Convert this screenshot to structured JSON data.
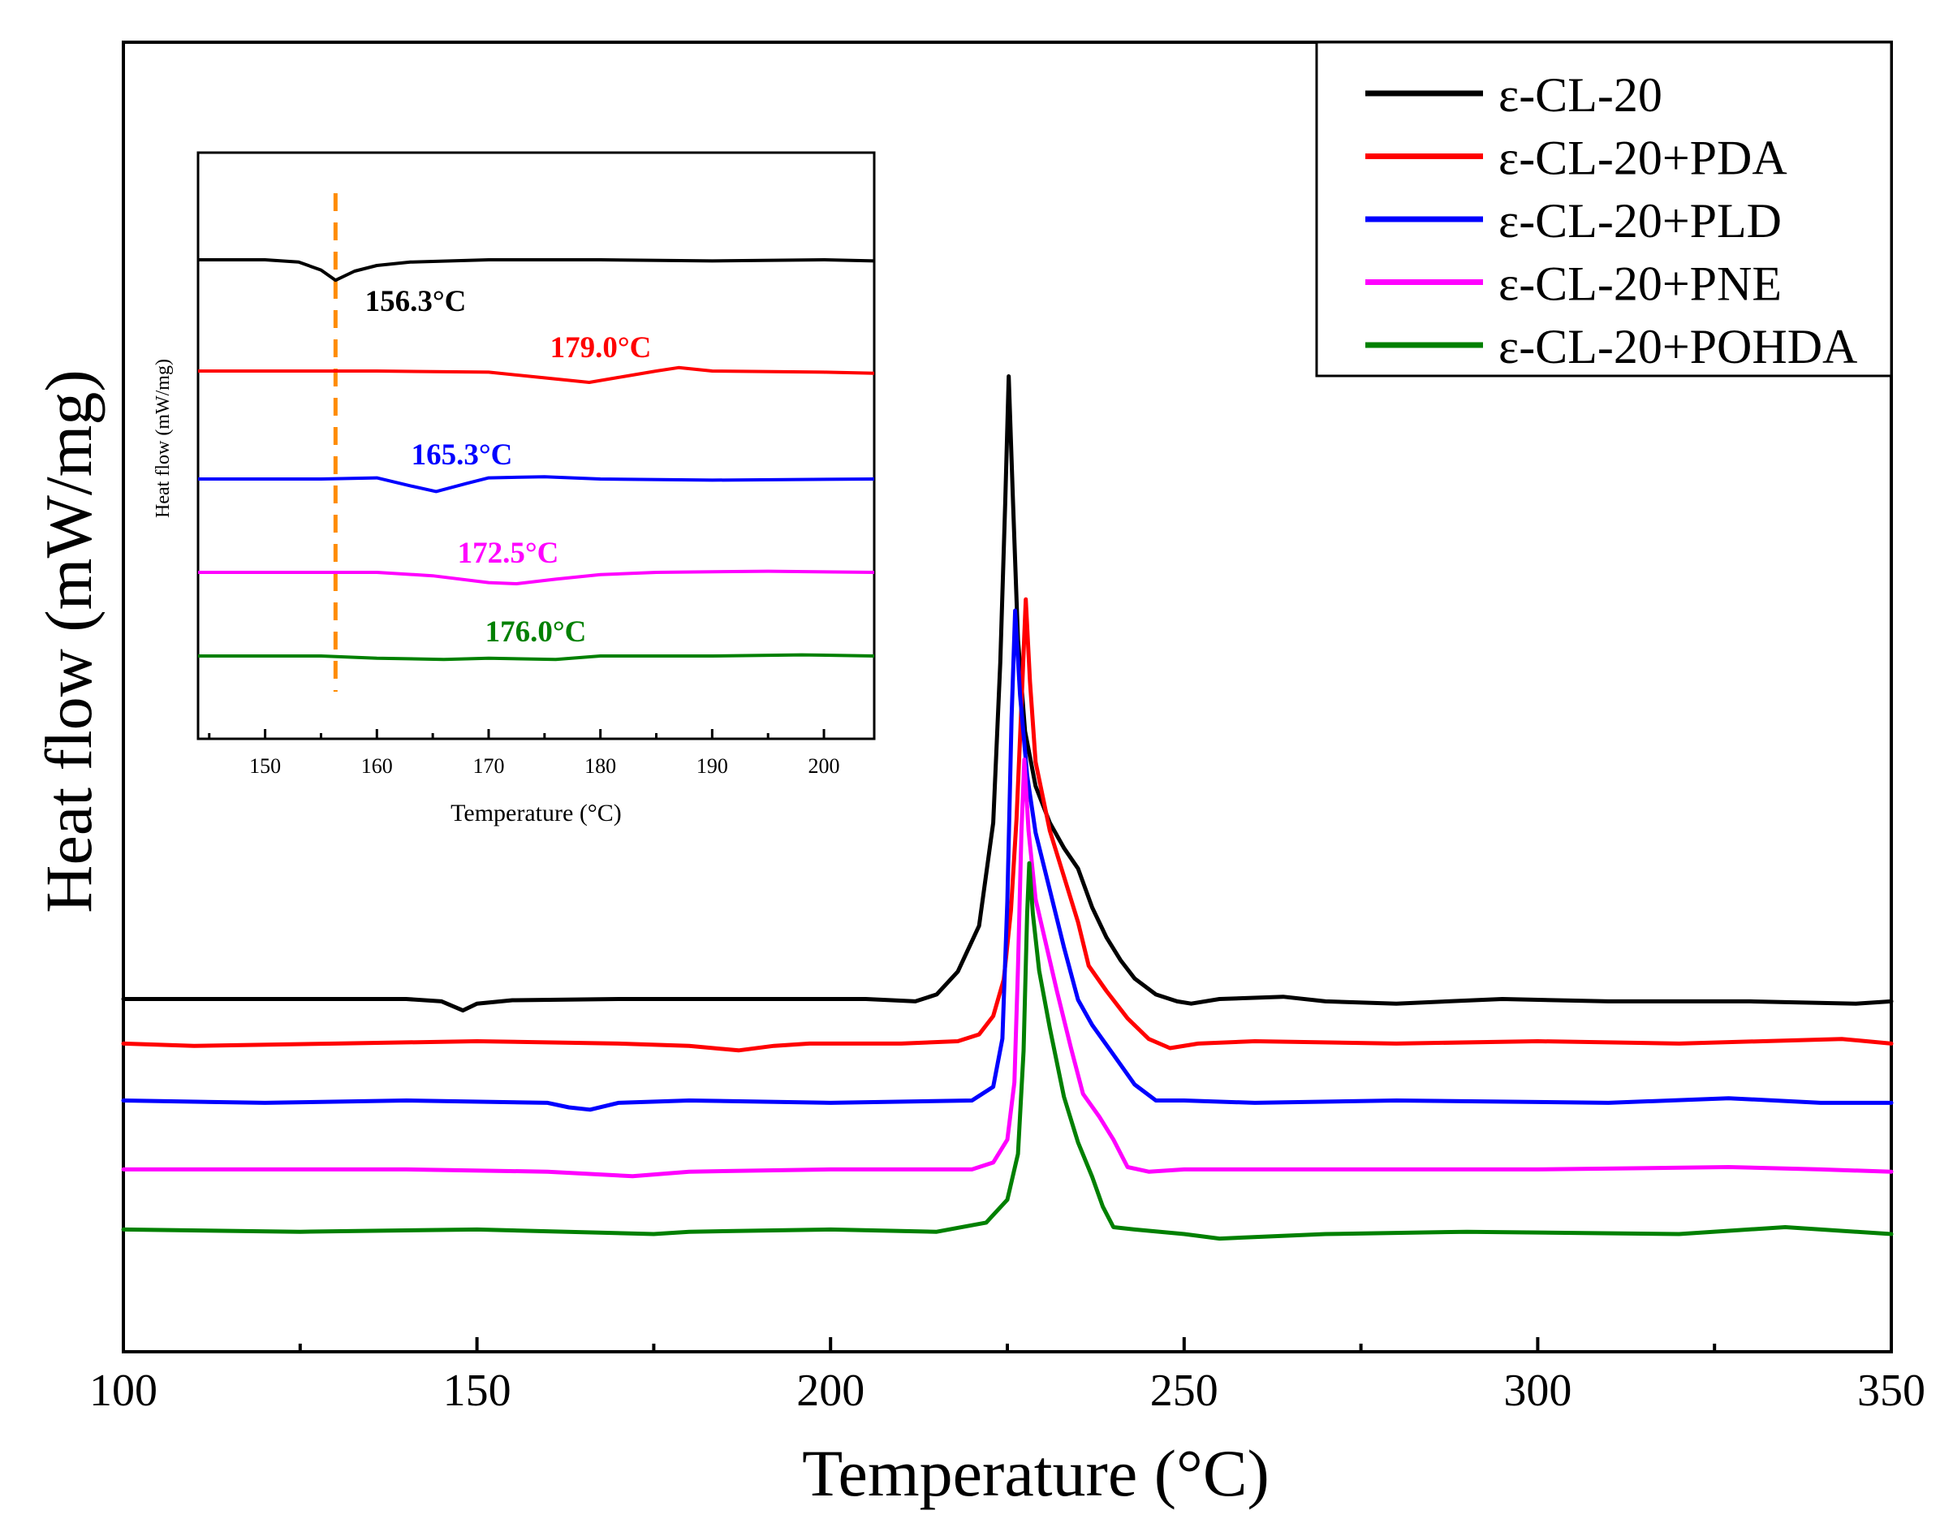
{
  "chart_data": [
    {
      "type": "line",
      "title": "",
      "xlabel": "Temperature (°C)",
      "ylabel": "Heat flow (mW/mg)",
      "xlim": [
        100,
        350
      ],
      "x_ticks": [
        100,
        150,
        200,
        250,
        300,
        350
      ],
      "y_ticks_shown": false,
      "grid": false,
      "legend": "top-right",
      "series": [
        {
          "name": "ε-CL-20",
          "color": "#000000",
          "points": [
            [
              100,
              0.3
            ],
            [
              110,
              0.3
            ],
            [
              130,
              0.3
            ],
            [
              140,
              0.3
            ],
            [
              145,
              0.2
            ],
            [
              148,
              -0.2
            ],
            [
              150,
              0.1
            ],
            [
              155,
              0.25
            ],
            [
              170,
              0.3
            ],
            [
              190,
              0.3
            ],
            [
              205,
              0.3
            ],
            [
              212,
              0.2
            ],
            [
              215,
              0.5
            ],
            [
              218,
              1.5
            ],
            [
              221,
              3.5
            ],
            [
              223,
              8
            ],
            [
              224,
              15
            ],
            [
              224.7,
              22
            ],
            [
              225.2,
              27.5
            ],
            [
              225.8,
              22
            ],
            [
              226.5,
              16
            ],
            [
              227.5,
              12
            ],
            [
              229,
              9.6
            ],
            [
              231,
              8
            ],
            [
              233,
              6.9
            ],
            [
              235,
              6
            ],
            [
              237,
              4.3
            ],
            [
              239,
              3
            ],
            [
              241,
              2
            ],
            [
              243,
              1.2
            ],
            [
              246,
              0.5
            ],
            [
              249,
              0.2
            ],
            [
              251,
              0.1
            ],
            [
              255,
              0.3
            ],
            [
              264,
              0.4
            ],
            [
              270,
              0.2
            ],
            [
              280,
              0.1
            ],
            [
              295,
              0.3
            ],
            [
              310,
              0.2
            ],
            [
              330,
              0.2
            ],
            [
              345,
              0.1
            ],
            [
              350,
              0.2
            ]
          ]
        },
        {
          "name": "ε-CL-20+PDA",
          "color": "#ff0000",
          "points": [
            [
              100,
              0.2
            ],
            [
              110,
              0.1
            ],
            [
              130,
              0.2
            ],
            [
              150,
              0.3
            ],
            [
              170,
              0.2
            ],
            [
              180,
              0.1
            ],
            [
              187,
              -0.1
            ],
            [
              192,
              0.1
            ],
            [
              197,
              0.2
            ],
            [
              210,
              0.2
            ],
            [
              218,
              0.3
            ],
            [
              221,
              0.6
            ],
            [
              223,
              1.4
            ],
            [
              224.5,
              3
            ],
            [
              225.5,
              6
            ],
            [
              226.3,
              10
            ],
            [
              227,
              15
            ],
            [
              227.6,
              19.6
            ],
            [
              228.2,
              16
            ],
            [
              229,
              12.5
            ],
            [
              231,
              9.5
            ],
            [
              233,
              7.5
            ],
            [
              235,
              5.5
            ],
            [
              236.5,
              3.6
            ],
            [
              239,
              2.5
            ],
            [
              242,
              1.3
            ],
            [
              245,
              0.4
            ],
            [
              248,
              0
            ],
            [
              252,
              0.2
            ],
            [
              260,
              0.3
            ],
            [
              280,
              0.2
            ],
            [
              300,
              0.3
            ],
            [
              320,
              0.2
            ],
            [
              343,
              0.4
            ],
            [
              350,
              0.2
            ]
          ]
        },
        {
          "name": "ε-CL-20+PLD",
          "color": "#0000ff",
          "points": [
            [
              100,
              0.3
            ],
            [
              120,
              0.2
            ],
            [
              140,
              0.3
            ],
            [
              160,
              0.2
            ],
            [
              163,
              0
            ],
            [
              166,
              -0.1
            ],
            [
              170,
              0.2
            ],
            [
              180,
              0.3
            ],
            [
              200,
              0.2
            ],
            [
              220,
              0.3
            ],
            [
              223,
              0.9
            ],
            [
              224.3,
              3
            ],
            [
              225,
              9
            ],
            [
              225.6,
              17
            ],
            [
              226.1,
              21.7
            ],
            [
              226.8,
              18
            ],
            [
              227.8,
              14.5
            ],
            [
              229,
              12
            ],
            [
              231,
              9.5
            ],
            [
              233,
              7
            ],
            [
              235,
              4.7
            ],
            [
              237,
              3.6
            ],
            [
              240,
              2.3
            ],
            [
              243,
              1
            ],
            [
              246,
              0.3
            ],
            [
              250,
              0.3
            ],
            [
              260,
              0.2
            ],
            [
              280,
              0.3
            ],
            [
              310,
              0.2
            ],
            [
              327,
              0.4
            ],
            [
              340,
              0.2
            ],
            [
              350,
              0.2
            ]
          ]
        },
        {
          "name": "ε-CL-20+PNE",
          "color": "#ff00ff",
          "points": [
            [
              100,
              0.2
            ],
            [
              120,
              0.2
            ],
            [
              140,
              0.2
            ],
            [
              160,
              0.1
            ],
            [
              172,
              -0.1
            ],
            [
              180,
              0.1
            ],
            [
              200,
              0.2
            ],
            [
              220,
              0.2
            ],
            [
              223,
              0.5
            ],
            [
              225,
              1.5
            ],
            [
              226,
              4
            ],
            [
              226.5,
              9
            ],
            [
              227,
              15
            ],
            [
              227.4,
              18.1
            ],
            [
              228,
              15
            ],
            [
              229,
              12
            ],
            [
              230.5,
              10
            ],
            [
              232,
              8
            ],
            [
              234,
              5.5
            ],
            [
              235.7,
              3.5
            ],
            [
              238,
              2.5
            ],
            [
              240,
              1.5
            ],
            [
              242,
              0.3
            ],
            [
              245,
              0.1
            ],
            [
              250,
              0.2
            ],
            [
              270,
              0.2
            ],
            [
              300,
              0.2
            ],
            [
              327,
              0.3
            ],
            [
              340,
              0.2
            ],
            [
              350,
              0.1
            ]
          ]
        },
        {
          "name": "ε-CL-20+POHDA",
          "color": "#008000",
          "points": [
            [
              100,
              0.2
            ],
            [
              125,
              0.1
            ],
            [
              150,
              0.2
            ],
            [
              175,
              0
            ],
            [
              180,
              0.1
            ],
            [
              200,
              0.2
            ],
            [
              215,
              0.1
            ],
            [
              222,
              0.5
            ],
            [
              225,
              1.5
            ],
            [
              226.5,
              3.5
            ],
            [
              227.3,
              8
            ],
            [
              227.8,
              14
            ],
            [
              228.1,
              16.2
            ],
            [
              228.6,
              14
            ],
            [
              229.5,
              11.5
            ],
            [
              231,
              9
            ],
            [
              233,
              6
            ],
            [
              235,
              4
            ],
            [
              237,
              2.5
            ],
            [
              238.5,
              1.2
            ],
            [
              240,
              0.3
            ],
            [
              243,
              0.2
            ],
            [
              250,
              0
            ],
            [
              255,
              -0.2
            ],
            [
              270,
              0
            ],
            [
              290,
              0.1
            ],
            [
              320,
              0
            ],
            [
              335,
              0.3
            ],
            [
              350,
              0
            ]
          ]
        }
      ]
    },
    {
      "type": "line",
      "title": "",
      "xlabel": "Temperature (°C)",
      "ylabel": "Heat flow (mW/mg)",
      "xlim": [
        144,
        204.5
      ],
      "x_ticks": [
        150,
        160,
        170,
        180,
        190,
        200
      ],
      "y_ticks_shown": false,
      "grid": false,
      "reference_line": {
        "x": 156.3,
        "style": "dashed",
        "color": "#ff8c00"
      },
      "series": [
        {
          "name": "ε-CL-20",
          "color": "#000000",
          "annotation": "156.3°C",
          "annotation_color": "#000000",
          "points": [
            [
              144,
              0
            ],
            [
              150,
              0
            ],
            [
              153,
              -0.1
            ],
            [
              155,
              -0.45
            ],
            [
              156.3,
              -0.9
            ],
            [
              158,
              -0.5
            ],
            [
              160,
              -0.25
            ],
            [
              163,
              -0.1
            ],
            [
              170,
              0
            ],
            [
              180,
              0
            ],
            [
              190,
              -0.05
            ],
            [
              200,
              0
            ],
            [
              204.5,
              -0.05
            ]
          ]
        },
        {
          "name": "ε-CL-20+PDA",
          "color": "#ff0000",
          "annotation": "179.0°C",
          "annotation_color": "#ff0000",
          "points": [
            [
              144,
              0
            ],
            [
              160,
              0
            ],
            [
              170,
              -0.05
            ],
            [
              175,
              -0.3
            ],
            [
              179,
              -0.5
            ],
            [
              182,
              -0.25
            ],
            [
              185,
              0
            ],
            [
              187,
              0.15
            ],
            [
              190,
              0
            ],
            [
              200,
              -0.05
            ],
            [
              204.5,
              -0.1
            ]
          ]
        },
        {
          "name": "ε-CL-20+PLD",
          "color": "#0000ff",
          "annotation": "165.3°C",
          "annotation_color": "#0000ff",
          "points": [
            [
              144,
              0
            ],
            [
              155,
              0
            ],
            [
              160,
              0.05
            ],
            [
              163,
              -0.3
            ],
            [
              165.3,
              -0.55
            ],
            [
              168,
              -0.2
            ],
            [
              170,
              0.05
            ],
            [
              175,
              0.1
            ],
            [
              180,
              0
            ],
            [
              190,
              -0.05
            ],
            [
              204.5,
              0
            ]
          ]
        },
        {
          "name": "ε-CL-20+PNE",
          "color": "#ff00ff",
          "annotation": "172.5°C",
          "annotation_color": "#ff00ff",
          "points": [
            [
              144,
              0
            ],
            [
              160,
              0
            ],
            [
              165,
              -0.15
            ],
            [
              170,
              -0.45
            ],
            [
              172.5,
              -0.5
            ],
            [
              176,
              -0.3
            ],
            [
              180,
              -0.1
            ],
            [
              185,
              0
            ],
            [
              195,
              0.05
            ],
            [
              204.5,
              0
            ]
          ]
        },
        {
          "name": "ε-CL-20+POHDA",
          "color": "#008000",
          "annotation": "176.0°C",
          "annotation_color": "#008000",
          "points": [
            [
              144,
              0
            ],
            [
              155,
              0
            ],
            [
              160,
              -0.1
            ],
            [
              166,
              -0.15
            ],
            [
              170,
              -0.1
            ],
            [
              176,
              -0.15
            ],
            [
              180,
              0
            ],
            [
              190,
              0
            ],
            [
              198,
              0.05
            ],
            [
              204.5,
              0
            ]
          ]
        }
      ]
    }
  ]
}
